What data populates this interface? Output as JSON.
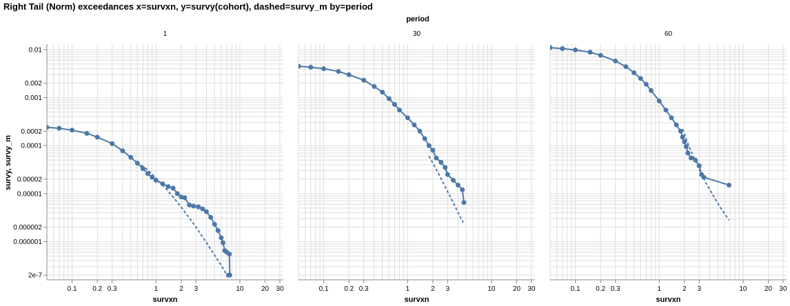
{
  "chart_data": {
    "type": "line",
    "title": "Right Tail (Norm) exceedances x=survxn, y=survy(cohort), dashed=survy_m by=period",
    "facet_header": "period",
    "xlabel": "survxn",
    "ylabel": "survy, survy_m",
    "xscale": "log",
    "yscale": "log",
    "xlim": [
      0.05,
      33
    ],
    "ylim": [
      1.6e-07,
      0.013
    ],
    "x_tick_labels": [
      {
        "value": 0.1,
        "label": "0.1"
      },
      {
        "value": 0.2,
        "label": "0.2"
      },
      {
        "value": 0.3,
        "label": "0.3"
      },
      {
        "value": 1,
        "label": "1"
      },
      {
        "value": 2,
        "label": "2"
      },
      {
        "value": 3,
        "label": "3"
      },
      {
        "value": 10,
        "label": "10"
      },
      {
        "value": 20,
        "label": "20"
      },
      {
        "value": 30,
        "label": "30"
      }
    ],
    "y_tick_labels": [
      {
        "value": 2e-07,
        "label": "2e-7"
      },
      {
        "value": 1e-06,
        "label": "0.000001"
      },
      {
        "value": 2e-06,
        "label": "0.000002"
      },
      {
        "value": 1e-05,
        "label": "0.00001"
      },
      {
        "value": 2e-05,
        "label": "0.00002"
      },
      {
        "value": 0.0001,
        "label": "0.0001"
      },
      {
        "value": 0.0002,
        "label": "0.0002"
      },
      {
        "value": 0.001,
        "label": "0.001"
      },
      {
        "value": 0.002,
        "label": "0.002"
      },
      {
        "value": 0.01,
        "label": "0.01"
      }
    ],
    "grid": true,
    "color": "#4c78a8",
    "grid_color": "#dddddd",
    "axis_color": "#888888",
    "facets": [
      {
        "period": "1",
        "survy": [
          [
            0.05,
            0.00024
          ],
          [
            0.07,
            0.00023
          ],
          [
            0.1,
            0.00021
          ],
          [
            0.15,
            0.00018
          ],
          [
            0.2,
            0.00015
          ],
          [
            0.3,
            0.00011
          ],
          [
            0.4,
            7.8e-05
          ],
          [
            0.5,
            5.7e-05
          ],
          [
            0.6,
            4.3e-05
          ],
          [
            0.7,
            3.3e-05
          ],
          [
            0.8,
            2.6e-05
          ],
          [
            0.9,
            2.2e-05
          ],
          [
            1.0,
            1.9e-05
          ],
          [
            1.2,
            1.6e-05
          ],
          [
            1.4,
            1.4e-05
          ],
          [
            1.6,
            1.3e-05
          ],
          [
            1.8,
            1e-05
          ],
          [
            2.0,
            8.5e-06
          ],
          [
            2.2,
            8.2e-06
          ],
          [
            2.5,
            5.8e-06
          ],
          [
            2.8,
            5.5e-06
          ],
          [
            3.2,
            5.3e-06
          ],
          [
            3.6,
            4.8e-06
          ],
          [
            4.0,
            4.2e-06
          ],
          [
            4.5,
            3.2e-06
          ],
          [
            5.0,
            2.3e-06
          ],
          [
            5.5,
            1.7e-06
          ],
          [
            6.0,
            1.2e-06
          ],
          [
            6.3,
            9.5e-07
          ],
          [
            6.6,
            6.5e-07
          ],
          [
            7.0,
            6e-07
          ],
          [
            7.5,
            5.5e-07
          ],
          [
            7.6,
            2e-07
          ],
          [
            7.3,
            2e-07
          ]
        ],
        "survy_m": [
          [
            0.6,
            4.5e-05
          ],
          [
            0.8,
            3.1e-05
          ],
          [
            1.0,
            2.1e-05
          ],
          [
            1.3,
            1.3e-05
          ],
          [
            1.6,
            8.5e-06
          ],
          [
            2.0,
            5.2e-06
          ],
          [
            2.5,
            3.1e-06
          ],
          [
            3.0,
            2e-06
          ],
          [
            4.0,
            9.5e-07
          ],
          [
            5.0,
            5.2e-07
          ],
          [
            6.0,
            3.2e-07
          ],
          [
            7.0,
            2e-07
          ]
        ]
      },
      {
        "period": "30",
        "survy": [
          [
            0.05,
            0.0045
          ],
          [
            0.07,
            0.0043
          ],
          [
            0.1,
            0.004
          ],
          [
            0.15,
            0.0035
          ],
          [
            0.2,
            0.003
          ],
          [
            0.3,
            0.0023
          ],
          [
            0.4,
            0.0017
          ],
          [
            0.5,
            0.0013
          ],
          [
            0.6,
            0.00095
          ],
          [
            0.7,
            0.00072
          ],
          [
            0.8,
            0.00055
          ],
          [
            1.0,
            0.00038
          ],
          [
            1.2,
            0.00027
          ],
          [
            1.4,
            0.0002
          ],
          [
            1.6,
            0.00014
          ],
          [
            1.8,
            0.0001
          ],
          [
            2.0,
            8e-05
          ],
          [
            2.2,
            5.5e-05
          ],
          [
            2.5,
            4.5e-05
          ],
          [
            2.8,
            3.5e-05
          ],
          [
            3.0,
            2.5e-05
          ],
          [
            3.5,
            1.9e-05
          ],
          [
            4.0,
            1.5e-05
          ],
          [
            4.5,
            1.2e-05
          ],
          [
            4.7,
            6.5e-06
          ]
        ],
        "survy_m": [
          [
            1.8,
            6e-05
          ],
          [
            2.2,
            3.2e-05
          ],
          [
            2.6,
            1.8e-05
          ],
          [
            3.0,
            1.1e-05
          ],
          [
            3.5,
            6.5e-06
          ],
          [
            4.0,
            4e-06
          ],
          [
            4.6,
            2.5e-06
          ]
        ]
      },
      {
        "period": "60",
        "survy": [
          [
            0.05,
            0.011
          ],
          [
            0.07,
            0.0105
          ],
          [
            0.1,
            0.0098
          ],
          [
            0.15,
            0.0088
          ],
          [
            0.2,
            0.0076
          ],
          [
            0.3,
            0.0058
          ],
          [
            0.4,
            0.0044
          ],
          [
            0.5,
            0.0033
          ],
          [
            0.6,
            0.0025
          ],
          [
            0.7,
            0.0019
          ],
          [
            0.8,
            0.0014
          ],
          [
            1.0,
            0.00085
          ],
          [
            1.2,
            0.00055
          ],
          [
            1.4,
            0.00038
          ],
          [
            1.6,
            0.00027
          ],
          [
            1.8,
            0.0002
          ],
          [
            1.9,
            0.00015
          ],
          [
            2.0,
            0.00012
          ],
          [
            2.1,
            9.5e-05
          ],
          [
            2.2,
            7e-05
          ],
          [
            2.4,
            5.5e-05
          ],
          [
            2.7,
            5e-05
          ],
          [
            3.0,
            3.8e-05
          ],
          [
            3.2,
            2.5e-05
          ],
          [
            3.4,
            2.2e-05
          ],
          [
            6.8,
            1.5e-05
          ]
        ],
        "survy_m": [
          [
            1.9,
            0.00022
          ],
          [
            2.2,
            0.00011
          ],
          [
            2.6,
            5.5e-05
          ],
          [
            3.0,
            3.2e-05
          ],
          [
            3.6,
            1.7e-05
          ],
          [
            4.5,
            8.5e-06
          ],
          [
            5.5,
            4.8e-06
          ],
          [
            6.8,
            2.8e-06
          ]
        ]
      }
    ]
  }
}
